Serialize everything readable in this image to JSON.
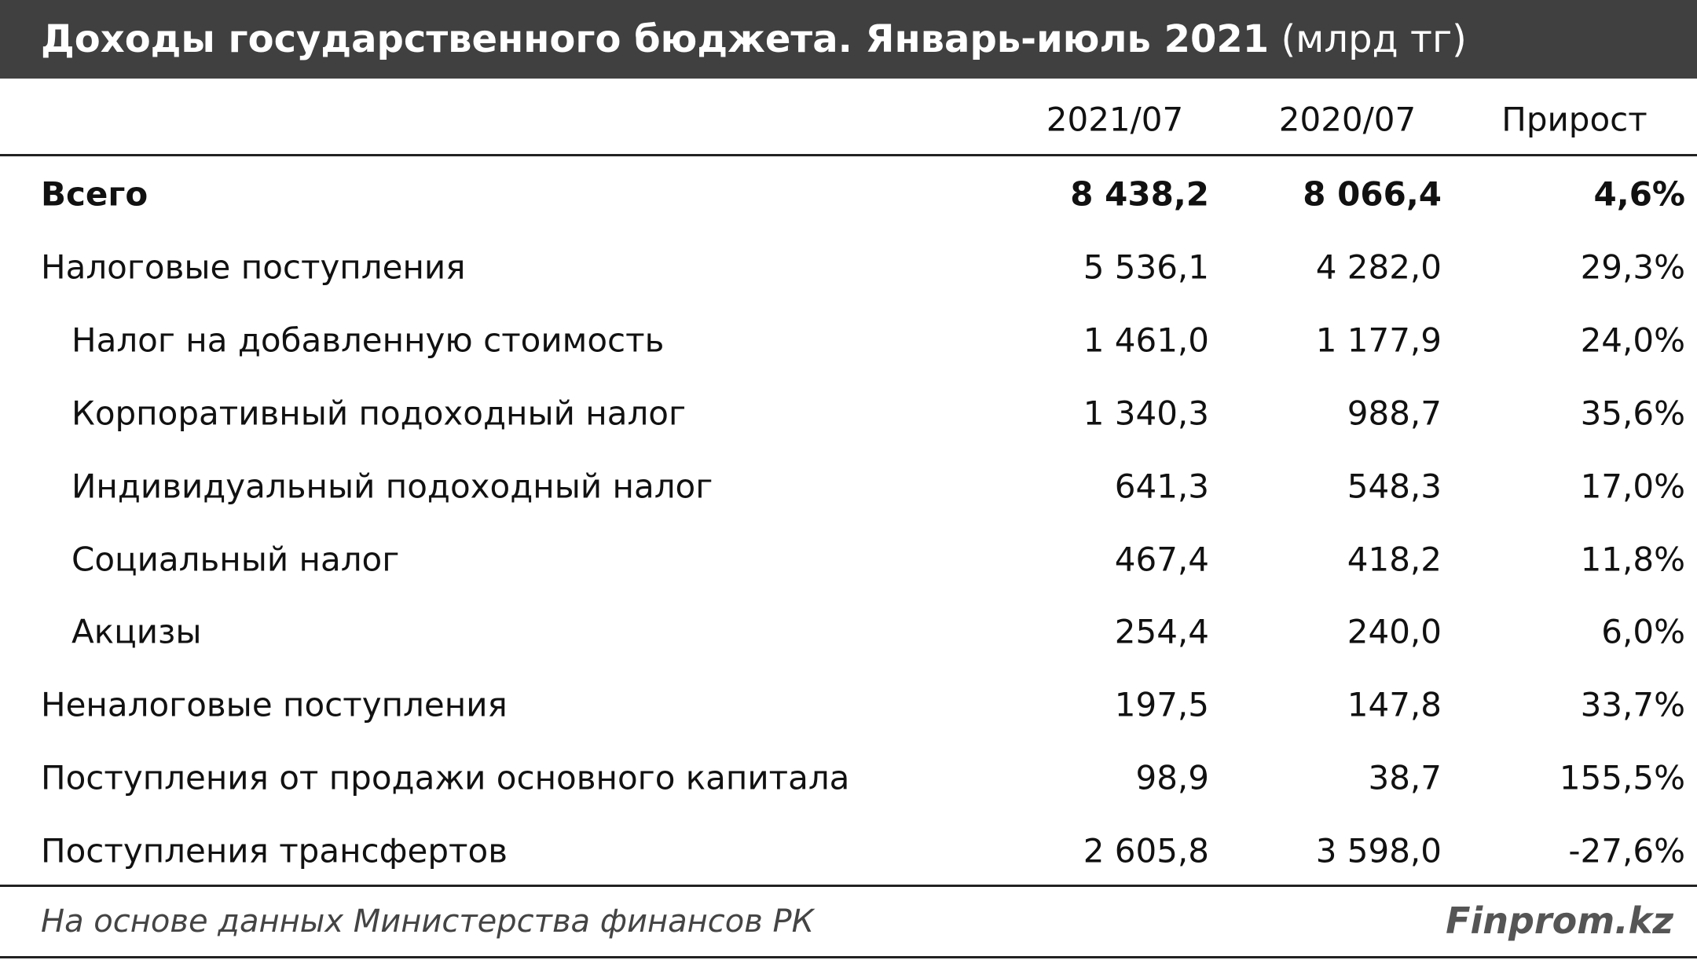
{
  "header": {
    "title": "Доходы государственного бюджета. Январь-июль 2021",
    "unit": "(млрд тг)"
  },
  "table": {
    "columns": [
      "2021/07",
      "2020/07",
      "Прирост"
    ],
    "rows": [
      [
        "Всего",
        "8 438,2",
        "8 066,4",
        "4,6%"
      ],
      [
        "Налоговые поступления",
        "5 536,1",
        "4 282,0",
        "29,3%"
      ],
      [
        "Налог на добавленную стоимость",
        "1 461,0",
        "1 177,9",
        "24,0%"
      ],
      [
        "Корпоративный подоходный налог",
        "1 340,3",
        "988,7",
        "35,6%"
      ],
      [
        "Индивидуальный подоходный налог",
        "641,3",
        "548,3",
        "17,0%"
      ],
      [
        "Социальный налог",
        "467,4",
        "418,2",
        "11,8%"
      ],
      [
        "Акцизы",
        "254,4",
        "240,0",
        "6,0%"
      ],
      [
        "Неналоговые поступления",
        "197,5",
        "147,8",
        "33,7%"
      ],
      [
        "Поступления от продажи основного капитала",
        "98,9",
        "38,7",
        "155,5%"
      ],
      [
        "Поступления трансфертов",
        "2 605,8",
        "3 598,0",
        "-27,6%"
      ]
    ]
  },
  "footer": {
    "source": "На основе данных Министерства финансов РК",
    "brand": "Finprom.kz"
  }
}
